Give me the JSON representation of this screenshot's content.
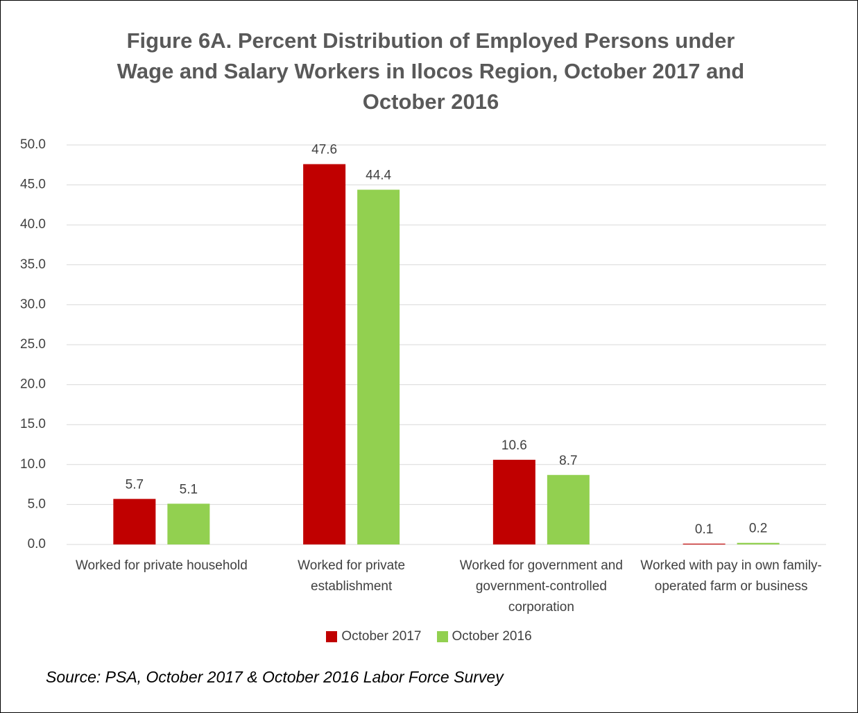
{
  "chart_data": {
    "type": "bar",
    "title": "Figure 6A. Percent Distribution of Employed Persons under Wage and Salary Workers in Ilocos Region, October 2017 and October 2016",
    "categories": [
      "Worked for private household",
      "Worked for private establishment",
      "Worked for government and government-controlled corporation",
      "Worked with pay in own family-operated farm or business"
    ],
    "series": [
      {
        "name": "October 2017",
        "color": "#c00000",
        "values": [
          5.7,
          47.6,
          10.6,
          0.1
        ]
      },
      {
        "name": "October 2016",
        "color": "#92d050",
        "values": [
          5.1,
          44.4,
          8.7,
          0.2
        ]
      }
    ],
    "ylim": [
      0,
      50
    ],
    "yticks": [
      {
        "value": 0,
        "label": "0.0"
      },
      {
        "value": 5,
        "label": "5.0"
      },
      {
        "value": 10,
        "label": "10.0"
      },
      {
        "value": 15,
        "label": "15.0"
      },
      {
        "value": 20,
        "label": "20.0"
      },
      {
        "value": 25,
        "label": "25.0"
      },
      {
        "value": 30,
        "label": "30.0"
      },
      {
        "value": 35,
        "label": "35.0"
      },
      {
        "value": 40,
        "label": "40.0"
      },
      {
        "value": 45,
        "label": "45.0"
      },
      {
        "value": 50,
        "label": "50.0"
      }
    ],
    "grid": true,
    "legend": "bottom",
    "source": "Source: PSA, October 2017 & October 2016 Labor Force Survey"
  }
}
